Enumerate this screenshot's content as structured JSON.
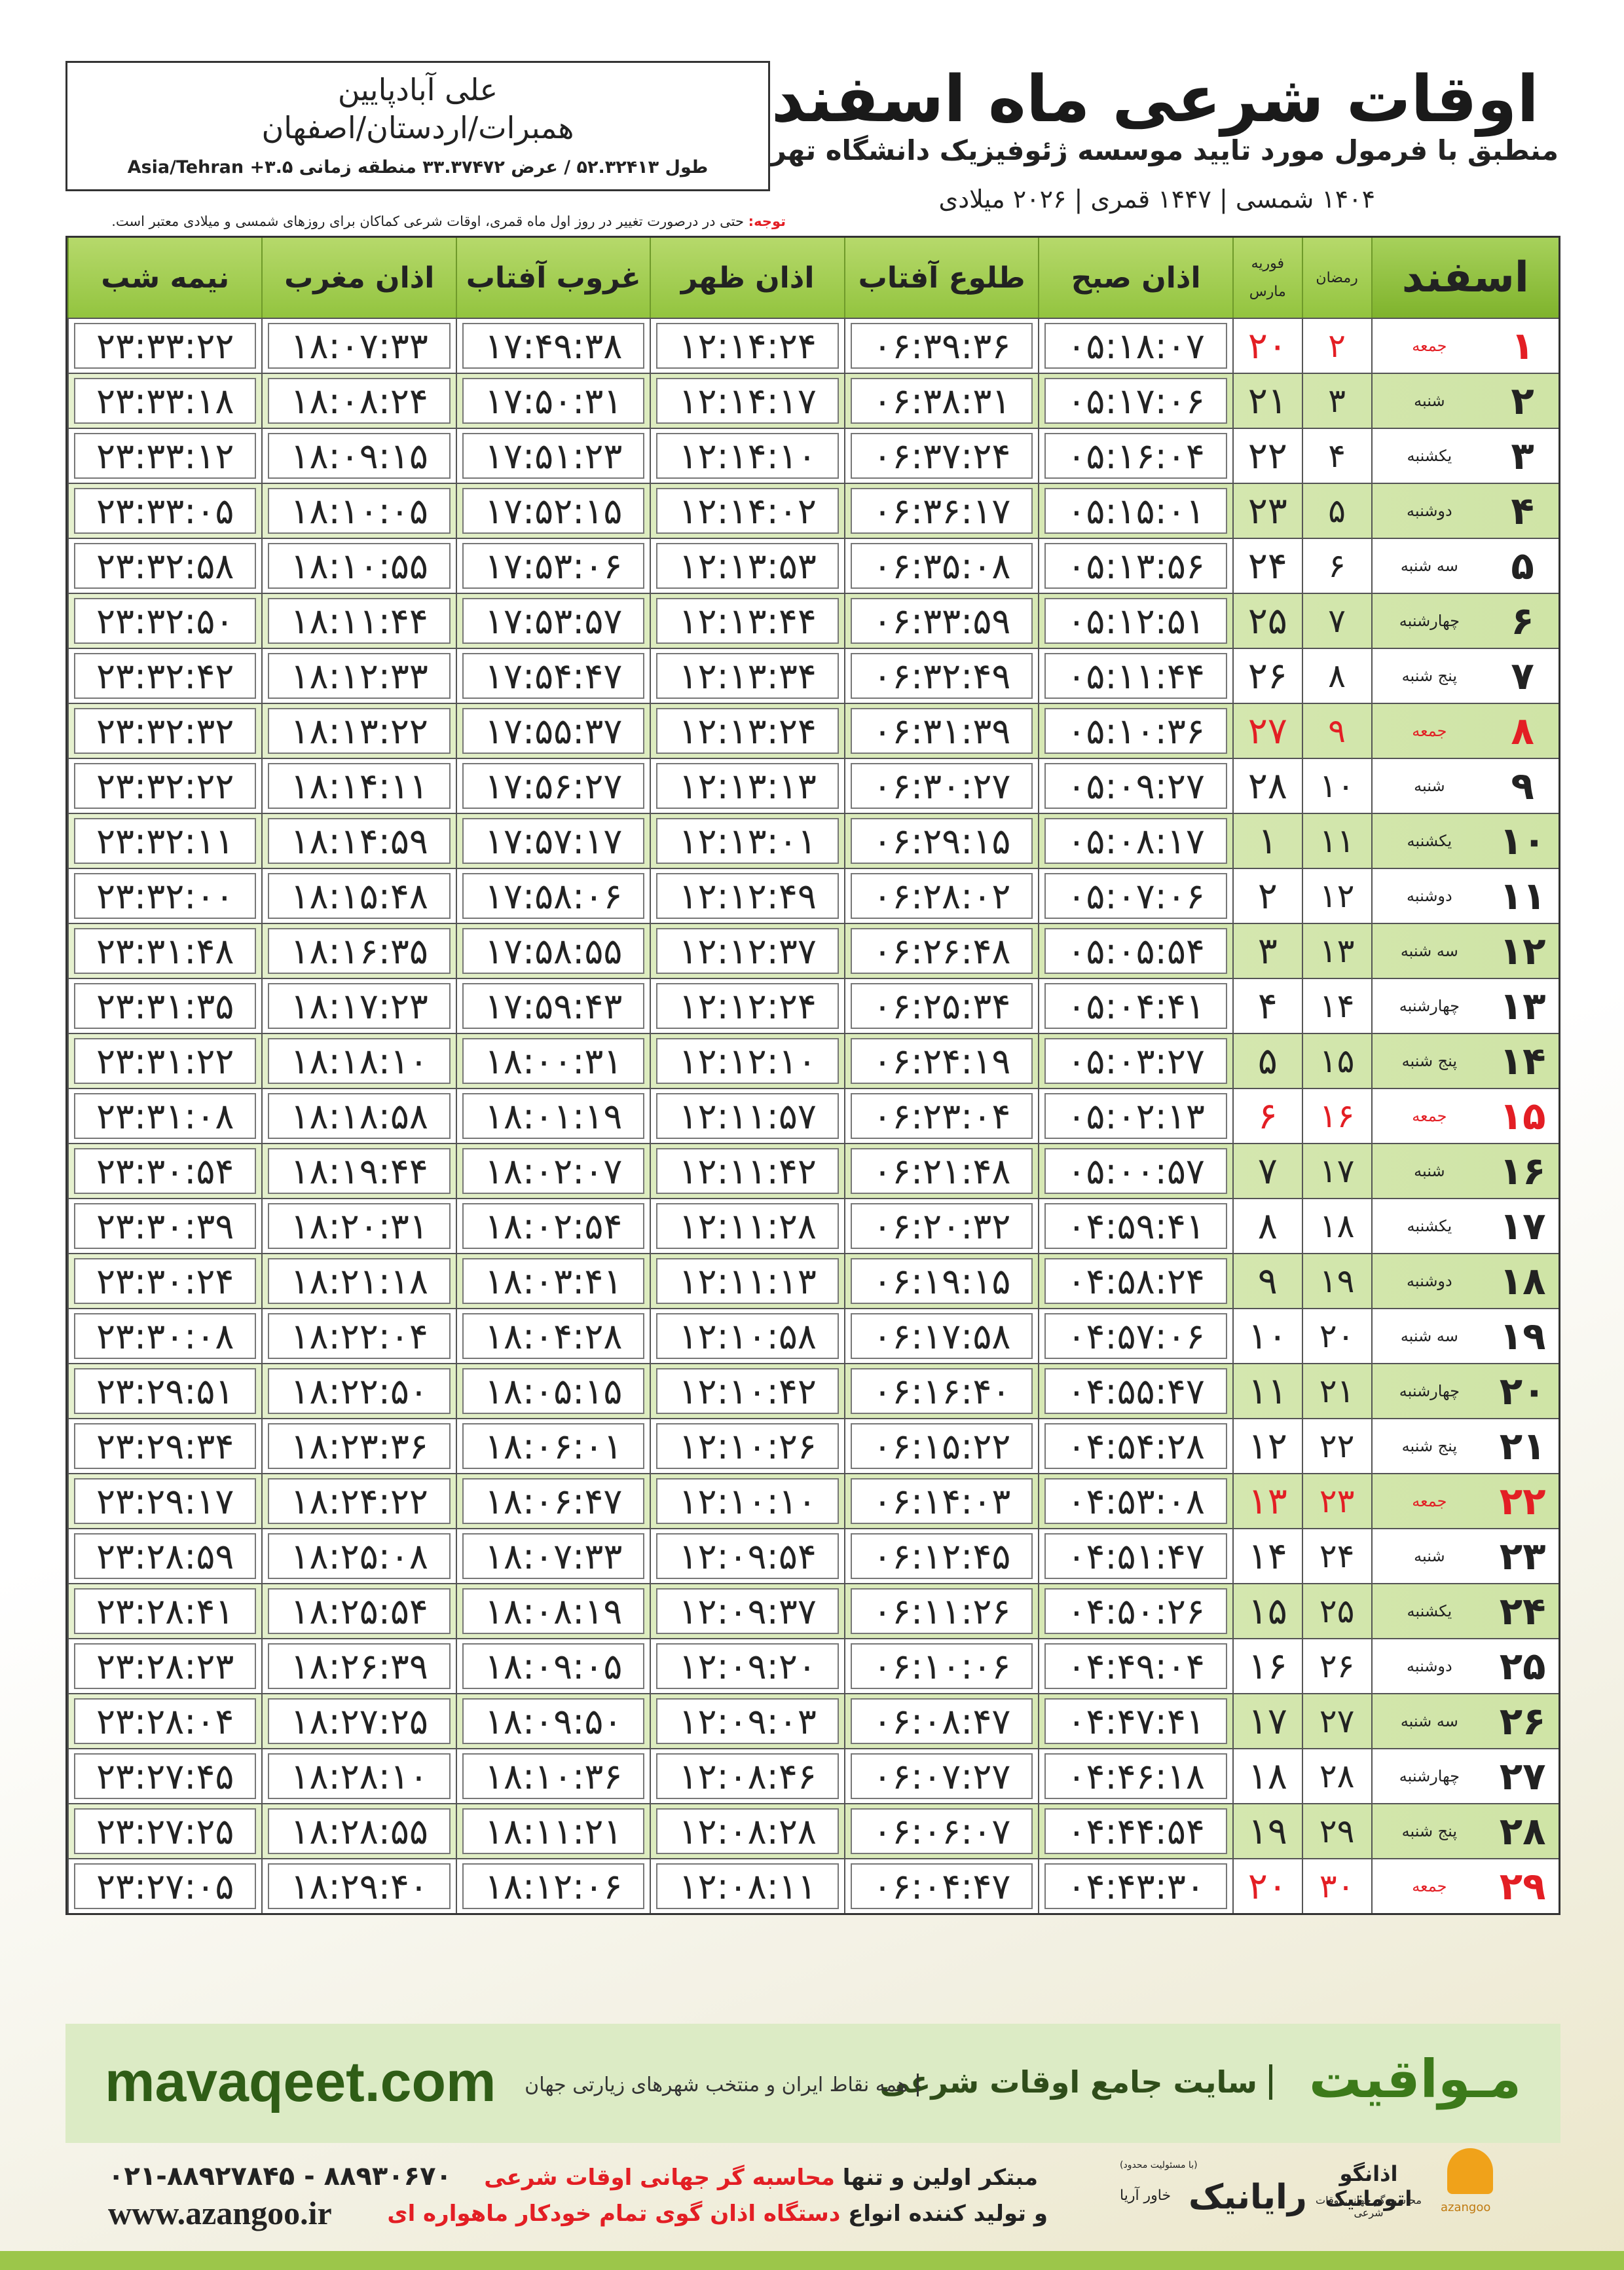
{
  "header": {
    "title": "اوقات شرعی ماه اسفند",
    "subtitle": "منطبق با فرمول مورد تایید موسسه ژئوفیزیک دانشگاه تهران",
    "date_line": "۱۴۰۴ شمسی | ۱۴۴۷ قمری | ۲۰۲۶ میلادی"
  },
  "location": {
    "name": "علی آبادپایین",
    "region": "همبرات/اردستان/اصفهان",
    "coords": "طول ۵۲.۳۲۴۱۳ / عرض ۳۳.۳۷۴۷۲ منطقه زمانی ۳.۵+ Asia/Tehran"
  },
  "note": {
    "label": "توجه:",
    "text": "حتی در درصورت تغییر در روز اول ماه قمری، اوقات شرعی کماکان برای روزهای شمسی و میلادی معتبر است."
  },
  "table": {
    "columns": {
      "esfand": "اسفند",
      "ramadan": "رمضان",
      "feb": "فوریه",
      "march": "مارس",
      "times": [
        "اذان صبح",
        "طلوع آفتاب",
        "اذان ظهر",
        "غروب آفتاب",
        "اذان مغرب",
        "نیمه شب"
      ]
    },
    "rows": [
      {
        "cells": [
          "۱",
          "جمعه",
          "۲",
          "۲۰",
          "۰۵:۱۸:۰۷",
          "۰۶:۳۹:۳۶",
          "۱۲:۱۴:۲۴",
          "۱۷:۴۹:۳۸",
          "۱۸:۰۷:۳۳",
          "۲۳:۳۳:۲۲"
        ],
        "color": "#e31e24"
      },
      {
        "cells": [
          "۲",
          "شنبه",
          "۳",
          "۲۱",
          "۰۵:۱۷:۰۶",
          "۰۶:۳۸:۳۱",
          "۱۲:۱۴:۱۷",
          "۱۷:۵۰:۳۱",
          "۱۸:۰۸:۲۴",
          "۲۳:۳۳:۱۸"
        ]
      },
      {
        "cells": [
          "۳",
          "یکشنبه",
          "۴",
          "۲۲",
          "۰۵:۱۶:۰۴",
          "۰۶:۳۷:۲۴",
          "۱۲:۱۴:۱۰",
          "۱۷:۵۱:۲۳",
          "۱۸:۰۹:۱۵",
          "۲۳:۳۳:۱۲"
        ]
      },
      {
        "cells": [
          "۴",
          "دوشنبه",
          "۵",
          "۲۳",
          "۰۵:۱۵:۰۱",
          "۰۶:۳۶:۱۷",
          "۱۲:۱۴:۰۲",
          "۱۷:۵۲:۱۵",
          "۱۸:۱۰:۰۵",
          "۲۳:۳۳:۰۵"
        ]
      },
      {
        "cells": [
          "۵",
          "سه شنبه",
          "۶",
          "۲۴",
          "۰۵:۱۳:۵۶",
          "۰۶:۳۵:۰۸",
          "۱۲:۱۳:۵۳",
          "۱۷:۵۳:۰۶",
          "۱۸:۱۰:۵۵",
          "۲۳:۳۲:۵۸"
        ]
      },
      {
        "cells": [
          "۶",
          "چهارشنبه",
          "۷",
          "۲۵",
          "۰۵:۱۲:۵۱",
          "۰۶:۳۳:۵۹",
          "۱۲:۱۳:۴۴",
          "۱۷:۵۳:۵۷",
          "۱۸:۱۱:۴۴",
          "۲۳:۳۲:۵۰"
        ]
      },
      {
        "cells": [
          "۷",
          "پنج شنبه",
          "۸",
          "۲۶",
          "۰۵:۱۱:۴۴",
          "۰۶:۳۲:۴۹",
          "۱۲:۱۳:۳۴",
          "۱۷:۵۴:۴۷",
          "۱۸:۱۲:۳۳",
          "۲۳:۳۲:۴۲"
        ]
      },
      {
        "cells": [
          "۸",
          "جمعه",
          "۹",
          "۲۷",
          "۰۵:۱۰:۳۶",
          "۰۶:۳۱:۳۹",
          "۱۲:۱۳:۲۴",
          "۱۷:۵۵:۳۷",
          "۱۸:۱۳:۲۲",
          "۲۳:۳۲:۳۲"
        ],
        "color": "#e31e24"
      },
      {
        "cells": [
          "۹",
          "شنبه",
          "۱۰",
          "۲۸",
          "۰۵:۰۹:۲۷",
          "۰۶:۳۰:۲۷",
          "۱۲:۱۳:۱۳",
          "۱۷:۵۶:۲۷",
          "۱۸:۱۴:۱۱",
          "۲۳:۳۲:۲۲"
        ]
      },
      {
        "cells": [
          "۱۰",
          "یکشنبه",
          "۱۱",
          "۱",
          "۰۵:۰۸:۱۷",
          "۰۶:۲۹:۱۵",
          "۱۲:۱۳:۰۱",
          "۱۷:۵۷:۱۷",
          "۱۸:۱۴:۵۹",
          "۲۳:۳۲:۱۱"
        ]
      },
      {
        "cells": [
          "۱۱",
          "دوشنبه",
          "۱۲",
          "۲",
          "۰۵:۰۷:۰۶",
          "۰۶:۲۸:۰۲",
          "۱۲:۱۲:۴۹",
          "۱۷:۵۸:۰۶",
          "۱۸:۱۵:۴۸",
          "۲۳:۳۲:۰۰"
        ]
      },
      {
        "cells": [
          "۱۲",
          "سه شنبه",
          "۱۳",
          "۳",
          "۰۵:۰۵:۵۴",
          "۰۶:۲۶:۴۸",
          "۱۲:۱۲:۳۷",
          "۱۷:۵۸:۵۵",
          "۱۸:۱۶:۳۵",
          "۲۳:۳۱:۴۸"
        ]
      },
      {
        "cells": [
          "۱۳",
          "چهارشنبه",
          "۱۴",
          "۴",
          "۰۵:۰۴:۴۱",
          "۰۶:۲۵:۳۴",
          "۱۲:۱۲:۲۴",
          "۱۷:۵۹:۴۳",
          "۱۸:۱۷:۲۳",
          "۲۳:۳۱:۳۵"
        ]
      },
      {
        "cells": [
          "۱۴",
          "پنج شنبه",
          "۱۵",
          "۵",
          "۰۵:۰۳:۲۷",
          "۰۶:۲۴:۱۹",
          "۱۲:۱۲:۱۰",
          "۱۸:۰۰:۳۱",
          "۱۸:۱۸:۱۰",
          "۲۳:۳۱:۲۲"
        ]
      },
      {
        "cells": [
          "۱۵",
          "جمعه",
          "۱۶",
          "۶",
          "۰۵:۰۲:۱۳",
          "۰۶:۲۳:۰۴",
          "۱۲:۱۱:۵۷",
          "۱۸:۰۱:۱۹",
          "۱۸:۱۸:۵۸",
          "۲۳:۳۱:۰۸"
        ],
        "color": "#e31e24"
      },
      {
        "cells": [
          "۱۶",
          "شنبه",
          "۱۷",
          "۷",
          "۰۵:۰۰:۵۷",
          "۰۶:۲۱:۴۸",
          "۱۲:۱۱:۴۲",
          "۱۸:۰۲:۰۷",
          "۱۸:۱۹:۴۴",
          "۲۳:۳۰:۵۴"
        ]
      },
      {
        "cells": [
          "۱۷",
          "یکشنبه",
          "۱۸",
          "۸",
          "۰۴:۵۹:۴۱",
          "۰۶:۲۰:۳۲",
          "۱۲:۱۱:۲۸",
          "۱۸:۰۲:۵۴",
          "۱۸:۲۰:۳۱",
          "۲۳:۳۰:۳۹"
        ]
      },
      {
        "cells": [
          "۱۸",
          "دوشنبه",
          "۱۹",
          "۹",
          "۰۴:۵۸:۲۴",
          "۰۶:۱۹:۱۵",
          "۱۲:۱۱:۱۳",
          "۱۸:۰۳:۴۱",
          "۱۸:۲۱:۱۸",
          "۲۳:۳۰:۲۴"
        ]
      },
      {
        "cells": [
          "۱۹",
          "سه شنبه",
          "۲۰",
          "۱۰",
          "۰۴:۵۷:۰۶",
          "۰۶:۱۷:۵۸",
          "۱۲:۱۰:۵۸",
          "۱۸:۰۴:۲۸",
          "۱۸:۲۲:۰۴",
          "۲۳:۳۰:۰۸"
        ]
      },
      {
        "cells": [
          "۲۰",
          "چهارشنبه",
          "۲۱",
          "۱۱",
          "۰۴:۵۵:۴۷",
          "۰۶:۱۶:۴۰",
          "۱۲:۱۰:۴۲",
          "۱۸:۰۵:۱۵",
          "۱۸:۲۲:۵۰",
          "۲۳:۲۹:۵۱"
        ]
      },
      {
        "cells": [
          "۲۱",
          "پنج شنبه",
          "۲۲",
          "۱۲",
          "۰۴:۵۴:۲۸",
          "۰۶:۱۵:۲۲",
          "۱۲:۱۰:۲۶",
          "۱۸:۰۶:۰۱",
          "۱۸:۲۳:۳۶",
          "۲۳:۲۹:۳۴"
        ]
      },
      {
        "cells": [
          "۲۲",
          "جمعه",
          "۲۳",
          "۱۳",
          "۰۴:۵۳:۰۸",
          "۰۶:۱۴:۰۳",
          "۱۲:۱۰:۱۰",
          "۱۸:۰۶:۴۷",
          "۱۸:۲۴:۲۲",
          "۲۳:۲۹:۱۷"
        ],
        "color": "#e31e24"
      },
      {
        "cells": [
          "۲۳",
          "شنبه",
          "۲۴",
          "۱۴",
          "۰۴:۵۱:۴۷",
          "۰۶:۱۲:۴۵",
          "۱۲:۰۹:۵۴",
          "۱۸:۰۷:۳۳",
          "۱۸:۲۵:۰۸",
          "۲۳:۲۸:۵۹"
        ]
      },
      {
        "cells": [
          "۲۴",
          "یکشنبه",
          "۲۵",
          "۱۵",
          "۰۴:۵۰:۲۶",
          "۰۶:۱۱:۲۶",
          "۱۲:۰۹:۳۷",
          "۱۸:۰۸:۱۹",
          "۱۸:۲۵:۵۴",
          "۲۳:۲۸:۴۱"
        ]
      },
      {
        "cells": [
          "۲۵",
          "دوشنبه",
          "۲۶",
          "۱۶",
          "۰۴:۴۹:۰۴",
          "۰۶:۱۰:۰۶",
          "۱۲:۰۹:۲۰",
          "۱۸:۰۹:۰۵",
          "۱۸:۲۶:۳۹",
          "۲۳:۲۸:۲۳"
        ]
      },
      {
        "cells": [
          "۲۶",
          "سه شنبه",
          "۲۷",
          "۱۷",
          "۰۴:۴۷:۴۱",
          "۰۶:۰۸:۴۷",
          "۱۲:۰۹:۰۳",
          "۱۸:۰۹:۵۰",
          "۱۸:۲۷:۲۵",
          "۲۳:۲۸:۰۴"
        ]
      },
      {
        "cells": [
          "۲۷",
          "چهارشنبه",
          "۲۸",
          "۱۸",
          "۰۴:۴۶:۱۸",
          "۰۶:۰۷:۲۷",
          "۱۲:۰۸:۴۶",
          "۱۸:۱۰:۳۶",
          "۱۸:۲۸:۱۰",
          "۲۳:۲۷:۴۵"
        ]
      },
      {
        "cells": [
          "۲۸",
          "پنج شنبه",
          "۲۹",
          "۱۹",
          "۰۴:۴۴:۵۴",
          "۰۶:۰۶:۰۷",
          "۱۲:۰۸:۲۸",
          "۱۸:۱۱:۲۱",
          "۱۸:۲۸:۵۵",
          "۲۳:۲۷:۲۵"
        ]
      },
      {
        "cells": [
          "۲۹",
          "جمعه",
          "۳۰",
          "۲۰",
          "۰۴:۴۳:۳۰",
          "۰۶:۰۴:۴۷",
          "۱۲:۰۸:۱۱",
          "۱۸:۱۲:۰۶",
          "۱۸:۲۹:۴۰",
          "۲۳:۲۷:۰۵"
        ],
        "color": "#e31e24"
      }
    ]
  },
  "banner": {
    "site": "mavaqeet.com",
    "brand": "مـواقیت",
    "tagline": "سایت جامع اوقات شرعی",
    "coverage": "همه نقاط ایران و منتخب شهرهای زیارتی جهان"
  },
  "footer": {
    "phones": "۰۲۱-۸۸۹۲۷۸۴۵ - ۸۸۹۳۰۶۷۰",
    "website": "www.azangoo.ir",
    "line1": {
      "plain": "مبتکر اولین و تنها",
      "red": "محاسبه گر جهانی اوقات شرعی"
    },
    "line2": {
      "plain": "و تولید کننده انواع",
      "red": "دستگاه اذان گوی تمام خودکار ماهواره ای"
    },
    "logo1": {
      "name": "رایانیک",
      "sub": "خاور آریا",
      "note": "(با مسئولیت محدود)"
    },
    "logo2": {
      "name": "اذانگو اتوماتیک",
      "sub": "محاسبه گر جهانی اوقات شرعی",
      "latin": "azangoo"
    }
  }
}
